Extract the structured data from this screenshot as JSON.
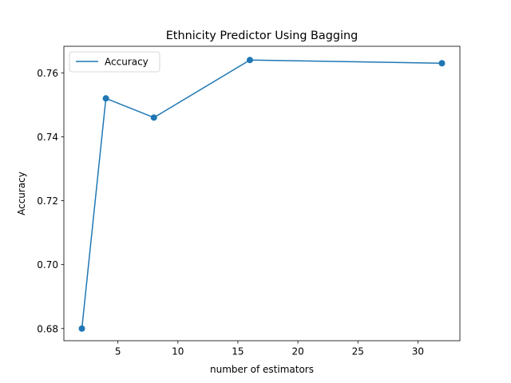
{
  "chart_data": {
    "type": "line",
    "title": "Ethnicity Predictor Using Bagging",
    "xlabel": "number of estimators",
    "ylabel": "Accuracy",
    "xlim": [
      0.5,
      33.5
    ],
    "ylim": [
      0.6762,
      0.7683
    ],
    "x_ticks": [
      5,
      10,
      15,
      20,
      25,
      30
    ],
    "y_ticks": [
      0.68,
      0.7,
      0.72,
      0.74,
      0.76
    ],
    "grid": false,
    "legend_position": "top-left",
    "series": [
      {
        "name": "Accuracy",
        "color": "#1f77b4",
        "marker": "circle",
        "x": [
          2,
          4,
          8,
          16,
          32
        ],
        "y": [
          0.68,
          0.752,
          0.746,
          0.764,
          0.763
        ]
      }
    ]
  }
}
